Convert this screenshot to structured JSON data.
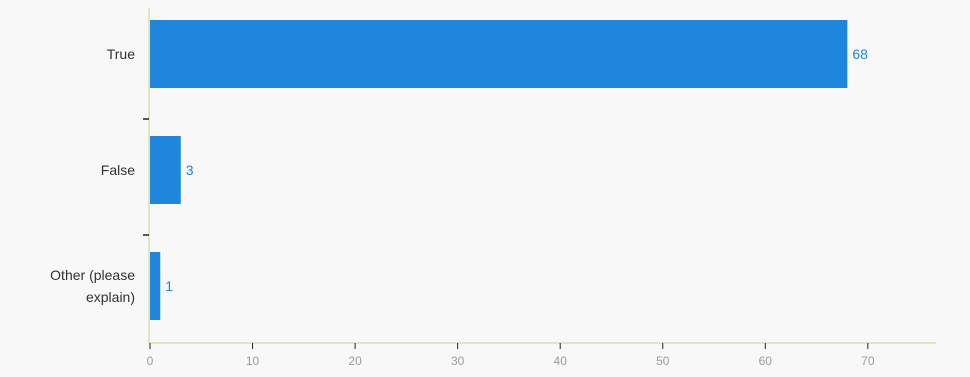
{
  "chart_data": {
    "type": "bar",
    "orientation": "horizontal",
    "categories": [
      "True",
      "False",
      "Other (please explain)"
    ],
    "category_lines": [
      [
        "True"
      ],
      [
        "False"
      ],
      [
        "Other (please",
        "explain)"
      ]
    ],
    "values": [
      68,
      3,
      1
    ],
    "xlim": [
      0,
      77
    ],
    "x_ticks": [
      0,
      10,
      20,
      30,
      40,
      50,
      60,
      70
    ],
    "grid": false,
    "legend": "none",
    "title": "",
    "xlabel": "",
    "ylabel": ""
  },
  "colors": {
    "bar": "#1f86dd",
    "value_label": "#1f86dd",
    "axis": "#c9d38f",
    "tick": "#222222"
  }
}
